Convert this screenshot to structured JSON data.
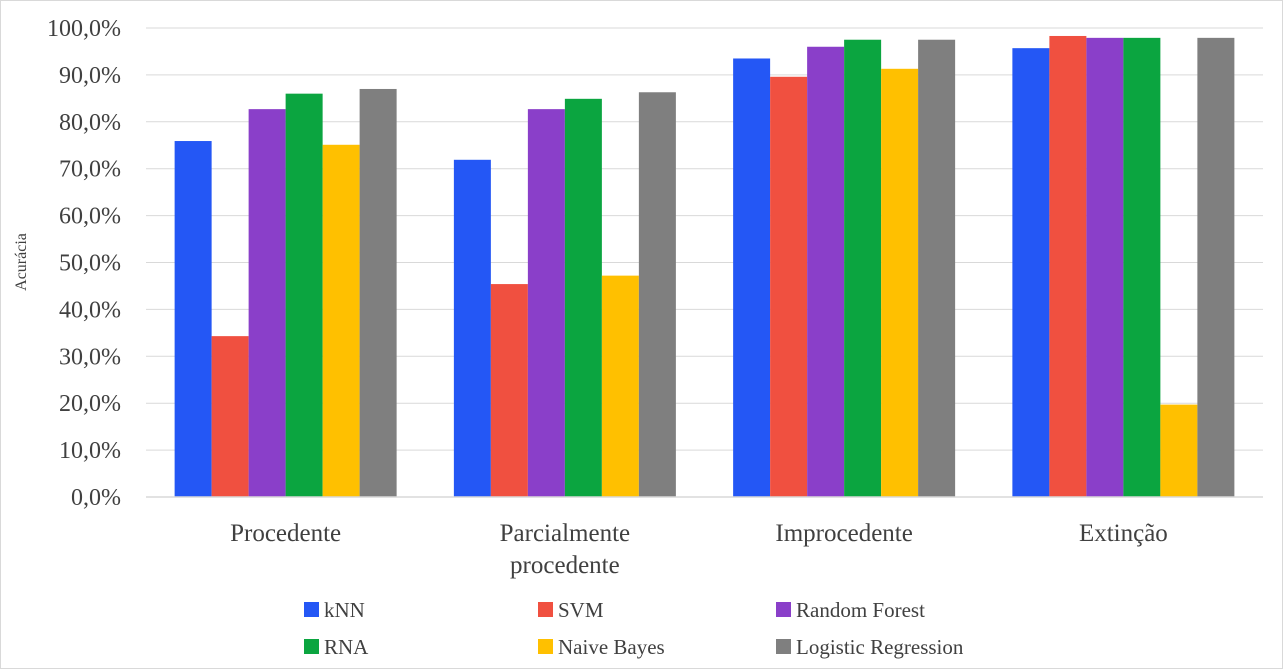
{
  "chart_data": {
    "type": "bar",
    "title": "",
    "xlabel": "",
    "ylabel": "Acurácia",
    "ylim": [
      0,
      100
    ],
    "yticks": [
      "0,0%",
      "10,0%",
      "20,0%",
      "30,0%",
      "40,0%",
      "50,0%",
      "60,0%",
      "70,0%",
      "80,0%",
      "90,0%",
      "100,0%"
    ],
    "categories": [
      [
        "Procedente"
      ],
      [
        "Parcialmente",
        "procedente"
      ],
      [
        "Improcedente"
      ],
      [
        "Extinção"
      ]
    ],
    "grid": "horizontal",
    "legend_position": "bottom",
    "series": [
      {
        "name": "kNN",
        "color": "#2457F5",
        "values": [
          75.9,
          71.9,
          93.5,
          95.7
        ]
      },
      {
        "name": "SVM",
        "color": "#F05040",
        "values": [
          34.3,
          45.4,
          89.6,
          98.3
        ]
      },
      {
        "name": "Random Forest",
        "color": "#8A3FC9",
        "values": [
          82.7,
          82.7,
          96.0,
          97.9
        ]
      },
      {
        "name": "RNA",
        "color": "#0BA540",
        "values": [
          86.0,
          84.9,
          97.5,
          97.9
        ]
      },
      {
        "name": "Naive Bayes",
        "color": "#FFC000",
        "values": [
          75.1,
          47.2,
          91.3,
          19.7
        ]
      },
      {
        "name": "Logistic Regression",
        "color": "#7F7F7F",
        "values": [
          87.0,
          86.3,
          97.5,
          97.9
        ]
      }
    ]
  }
}
